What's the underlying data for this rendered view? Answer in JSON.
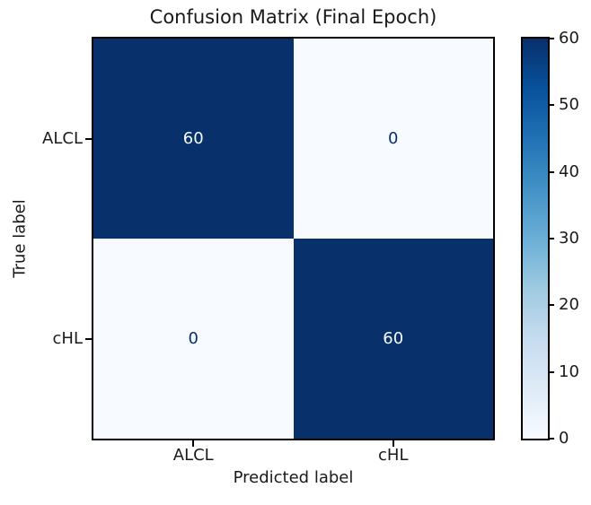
{
  "chart_data": {
    "type": "heatmap",
    "title": "Confusion Matrix (Final Epoch)",
    "xlabel": "Predicted label",
    "ylabel": "True label",
    "x_tick_labels": [
      "ALCL",
      "cHL"
    ],
    "y_tick_labels": [
      "ALCL",
      "cHL"
    ],
    "matrix": [
      [
        60,
        0
      ],
      [
        0,
        60
      ]
    ],
    "vmin": 0,
    "vmax": 60,
    "colormap": "Blues",
    "colorbar": {
      "ticks": [
        0,
        10,
        20,
        30,
        40,
        50,
        60
      ],
      "gradient_stops": [
        "#f7fbff",
        "#deebf7",
        "#c6dbef",
        "#9ecae1",
        "#6baed6",
        "#4292c6",
        "#2171b5",
        "#08519c",
        "#08306b"
      ]
    },
    "colors": {
      "cell_high": "#08306b",
      "cell_low": "#f7fbff",
      "text_on_dark": "#f7fbff",
      "text_on_light": "#08306b",
      "spine": "#000000",
      "text": "#1a1a1a"
    }
  }
}
